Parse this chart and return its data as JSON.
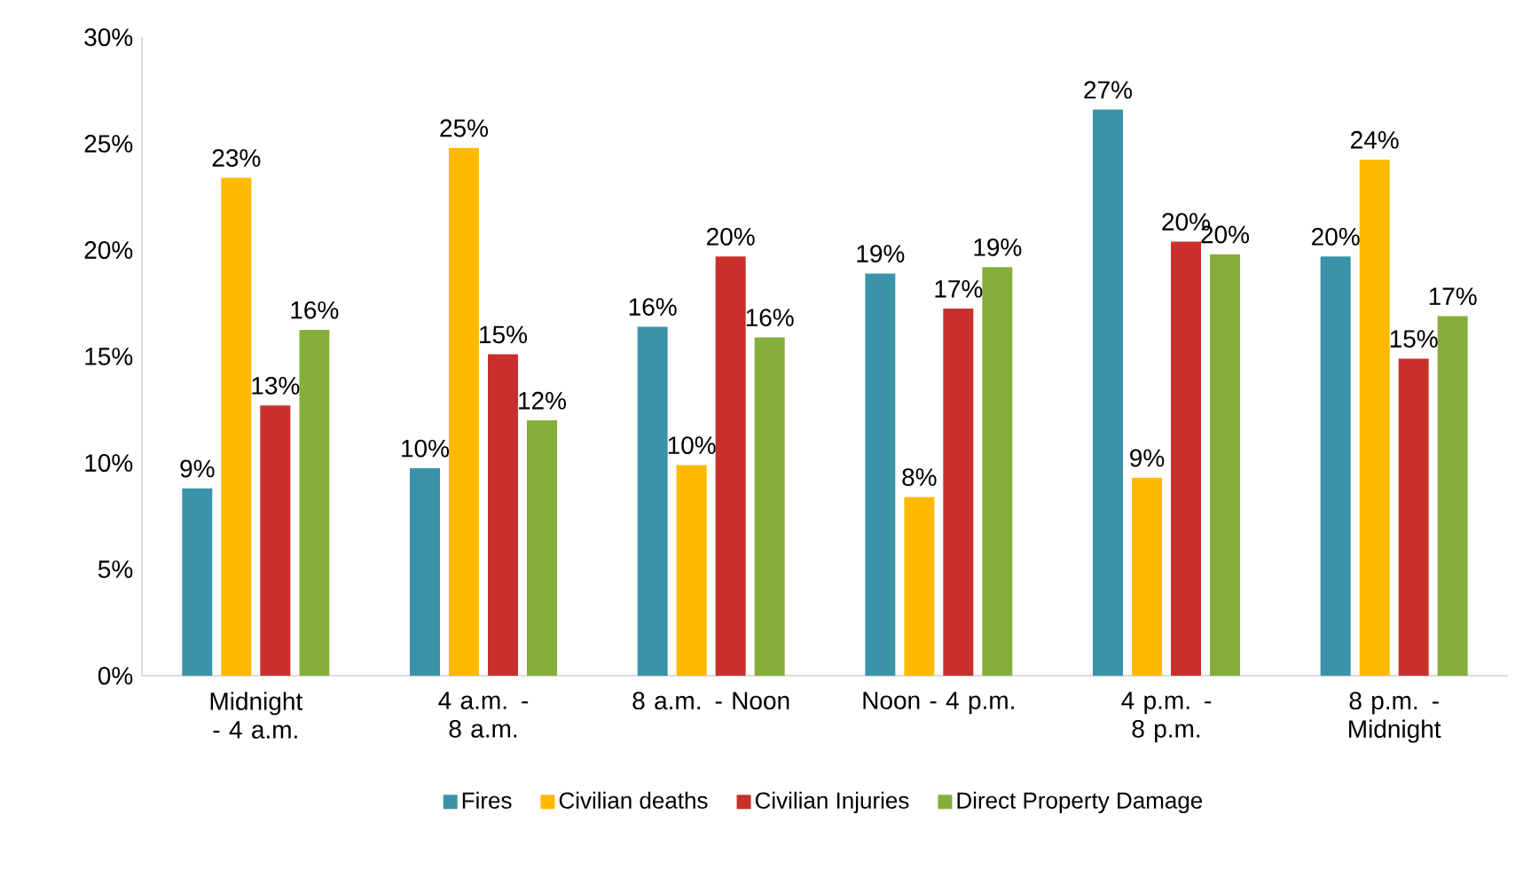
{
  "chart_data": {
    "type": "bar",
    "categories": [
      "Midnight - 4 a.m.",
      "4 a.m. - 8 a.m.",
      "8 a.m. - Noon",
      "Noon - 4 p.m.",
      "4 p.m. - 8 p.m.",
      "8 p.m. - Midnight"
    ],
    "series": [
      {
        "name": "Fires",
        "color": "#3a93a8",
        "values": [
          8.8,
          9.75,
          16.4,
          18.9,
          26.6,
          19.7
        ],
        "value_labels": [
          "9%",
          "10%",
          "16%",
          "19%",
          "27%",
          "20%"
        ]
      },
      {
        "name": "Civilian deaths",
        "color": "#ffb900",
        "values": [
          23.4,
          24.8,
          9.9,
          8.4,
          9.3,
          24.25
        ],
        "value_labels": [
          "23%",
          "25%",
          "10%",
          "8%",
          "9%",
          "24%"
        ]
      },
      {
        "name": "Civilian Injuries",
        "color": "#c9302c",
        "values": [
          12.7,
          15.1,
          19.7,
          17.25,
          20.4,
          14.9
        ],
        "value_labels": [
          "13%",
          "15%",
          "20%",
          "17%",
          "20%",
          "15%"
        ]
      },
      {
        "name": "Direct Property Damage",
        "color": "#86ae3a",
        "values": [
          16.25,
          12.0,
          15.9,
          19.2,
          19.8,
          16.9
        ],
        "value_labels": [
          "16%",
          "12%",
          "16%",
          "19%",
          "20%",
          "17%"
        ]
      }
    ],
    "ylim": [
      0,
      30
    ],
    "yticks": [
      {
        "value": 0,
        "label": "0%"
      },
      {
        "value": 5,
        "label": "5%"
      },
      {
        "value": 10,
        "label": "10%"
      },
      {
        "value": 15,
        "label": "15%"
      },
      {
        "value": 20,
        "label": "20%"
      },
      {
        "value": 25,
        "label": "25%"
      },
      {
        "value": 30,
        "label": "30%"
      }
    ],
    "grid": false,
    "legend": "bottom"
  }
}
